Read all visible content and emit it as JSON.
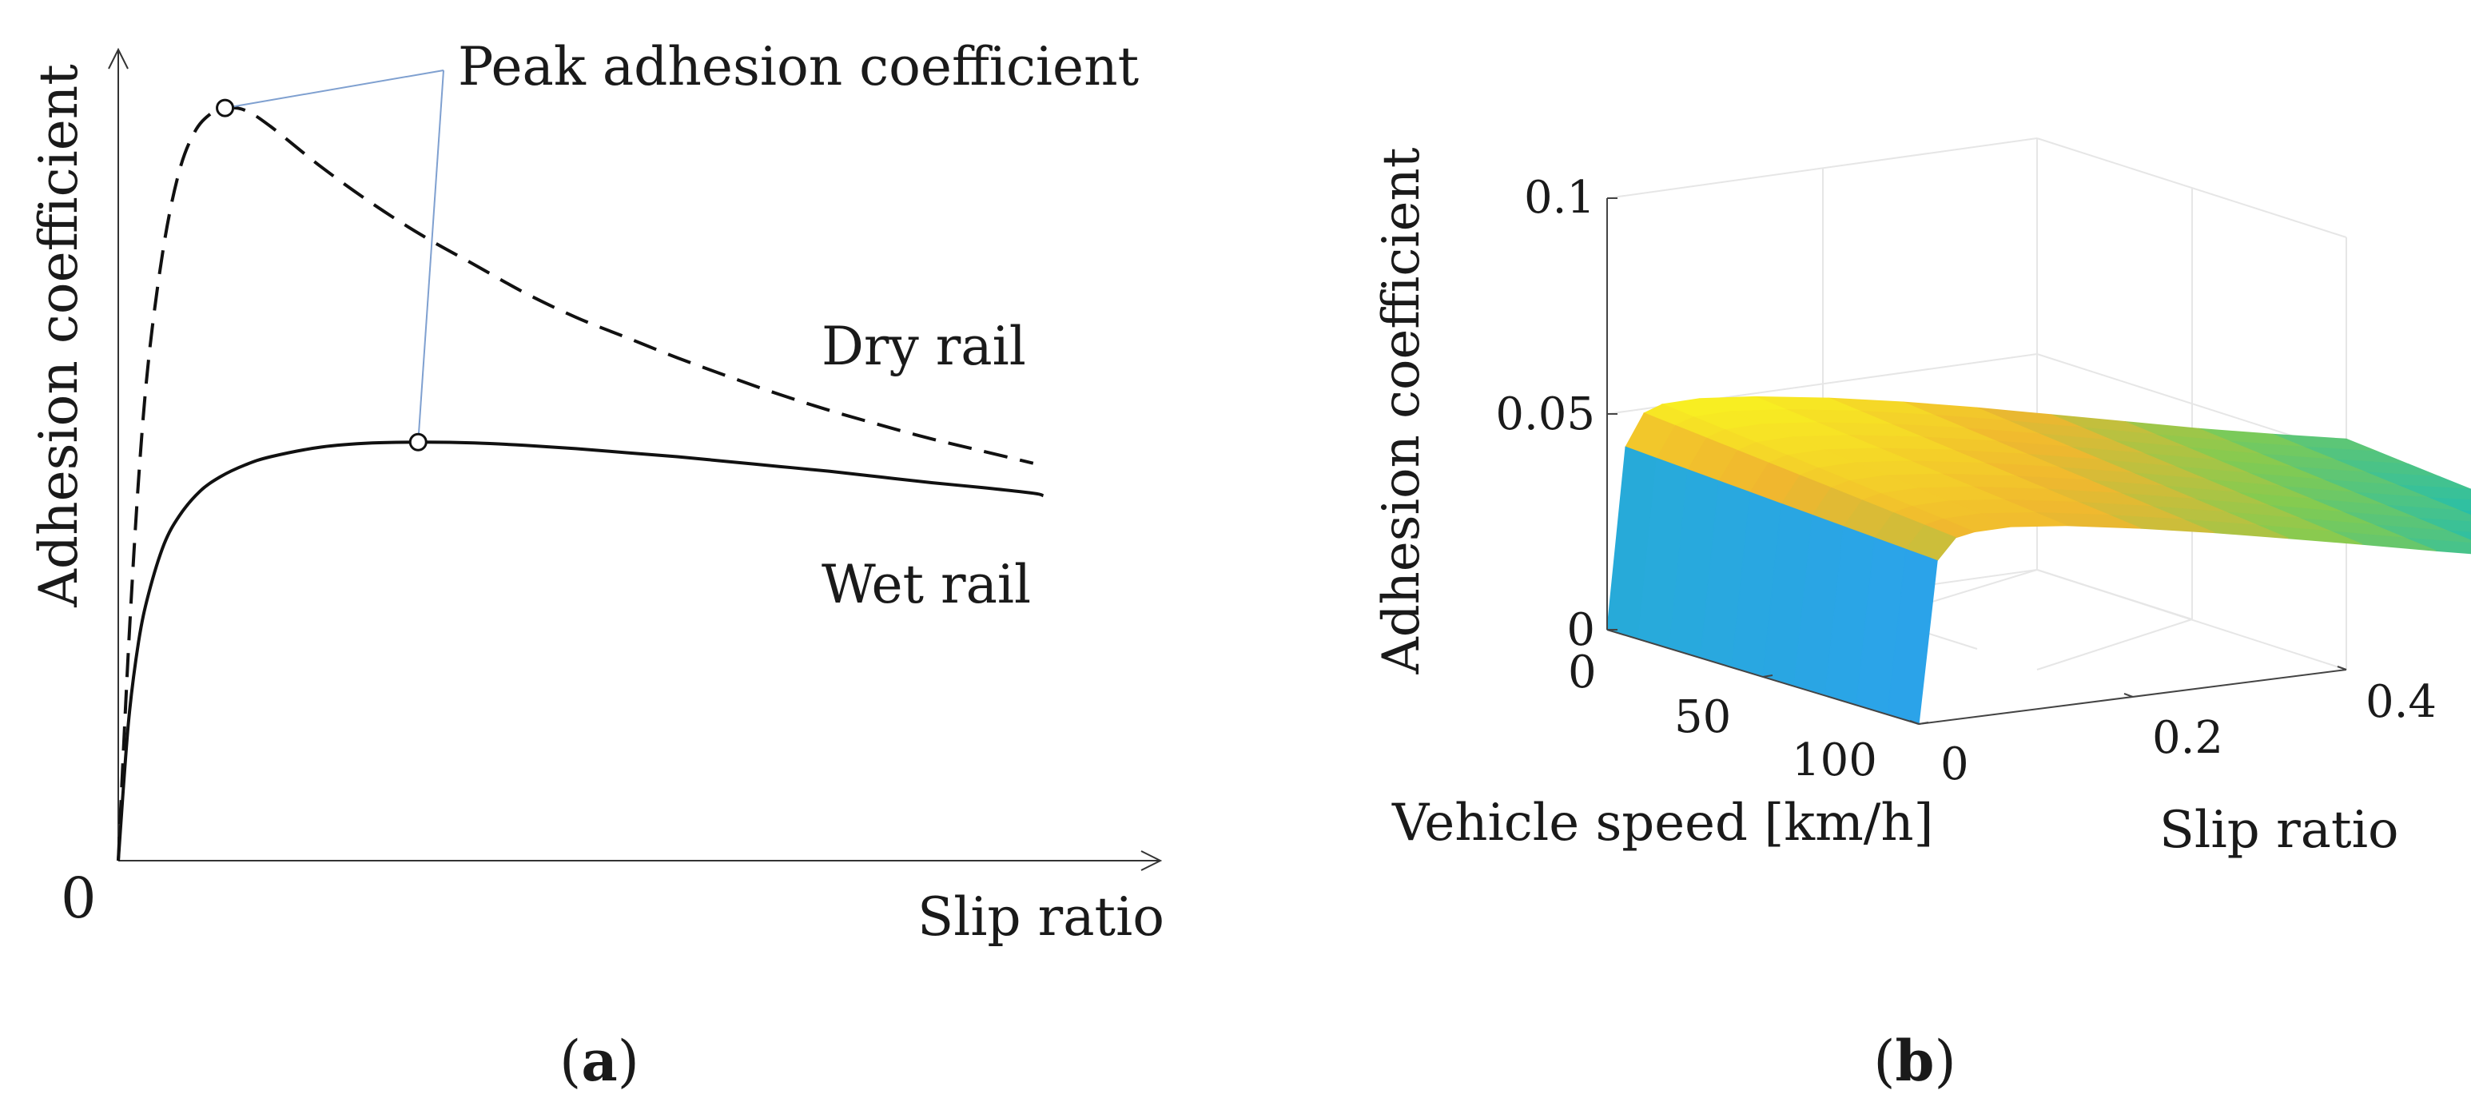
{
  "chart_data": [
    {
      "type": "line",
      "panel_label": "a",
      "title": "",
      "xlabel": "Slip ratio",
      "ylabel": "Adhesion coefficient",
      "origin_label": "0",
      "xlim": [
        0,
        1
      ],
      "ylim": [
        0,
        1
      ],
      "annotation": "Peak adhesion coefficient",
      "series": [
        {
          "name": "Dry rail",
          "style": "dashed",
          "x": [
            0,
            0.01,
            0.02,
            0.03,
            0.045,
            0.06,
            0.075,
            0.09,
            0.105,
            0.125,
            0.15,
            0.2,
            0.25,
            0.3,
            0.35,
            0.4,
            0.45,
            0.5,
            0.55,
            0.6,
            0.65,
            0.7,
            0.75,
            0.8,
            0.85,
            0.9
          ],
          "y": [
            0,
            0.26,
            0.47,
            0.62,
            0.76,
            0.85,
            0.898,
            0.92,
            0.928,
            0.925,
            0.905,
            0.855,
            0.81,
            0.77,
            0.735,
            0.7,
            0.67,
            0.645,
            0.62,
            0.597,
            0.575,
            0.555,
            0.537,
            0.52,
            0.505,
            0.49
          ],
          "peak": [
            0.105,
            0.928
          ]
        },
        {
          "name": "Wet rail",
          "style": "solid",
          "x": [
            0,
            0.01,
            0.02,
            0.03,
            0.045,
            0.06,
            0.08,
            0.1,
            0.125,
            0.15,
            0.2,
            0.25,
            0.3,
            0.35,
            0.4,
            0.45,
            0.5,
            0.55,
            0.6,
            0.65,
            0.7,
            0.75,
            0.8,
            0.85,
            0.9,
            0.91
          ],
          "y": [
            0,
            0.17,
            0.27,
            0.33,
            0.39,
            0.425,
            0.455,
            0.473,
            0.488,
            0.498,
            0.51,
            0.515,
            0.516,
            0.515,
            0.512,
            0.508,
            0.503,
            0.498,
            0.492,
            0.486,
            0.48,
            0.473,
            0.466,
            0.46,
            0.453,
            0.45
          ],
          "peak": [
            0.295,
            0.516
          ]
        }
      ]
    },
    {
      "type": "surface",
      "panel_label": "b",
      "title": "",
      "xlabel": "Vehicle speed [km/h]",
      "ylabel": "Slip ratio",
      "zlabel": "Adhesion coefficient",
      "x_ticks": [
        "0",
        "50",
        "100"
      ],
      "y_ticks": [
        "0",
        "0.2",
        "0.4"
      ],
      "z_ticks": [
        "0",
        "0.05",
        "0.1"
      ],
      "xlim": [
        0,
        100
      ],
      "ylim": [
        0,
        0.4
      ],
      "zlim": [
        0,
        0.1
      ],
      "colormap": [
        "#3e26a8",
        "#4760f2",
        "#2e9df6",
        "#1ebdb2",
        "#83cb51",
        "#f0b72f",
        "#f9f321"
      ],
      "slip": [
        0,
        0.01,
        0.02,
        0.03,
        0.05,
        0.08,
        0.12,
        0.16,
        0.2,
        0.24,
        0.28,
        0.32,
        0.36,
        0.4
      ],
      "adhesion_at_low_speed": [
        0,
        0.042,
        0.0495,
        0.0512,
        0.0518,
        0.0512,
        0.0495,
        0.0472,
        0.0445,
        0.0415,
        0.0385,
        0.0355,
        0.0328,
        0.0303
      ],
      "adhesion_at_high_speed": [
        0,
        0.0375,
        0.0425,
        0.0435,
        0.044,
        0.0432,
        0.0412,
        0.0388,
        0.0361,
        0.0333,
        0.0304,
        0.0277,
        0.0252,
        0.023
      ]
    }
  ]
}
